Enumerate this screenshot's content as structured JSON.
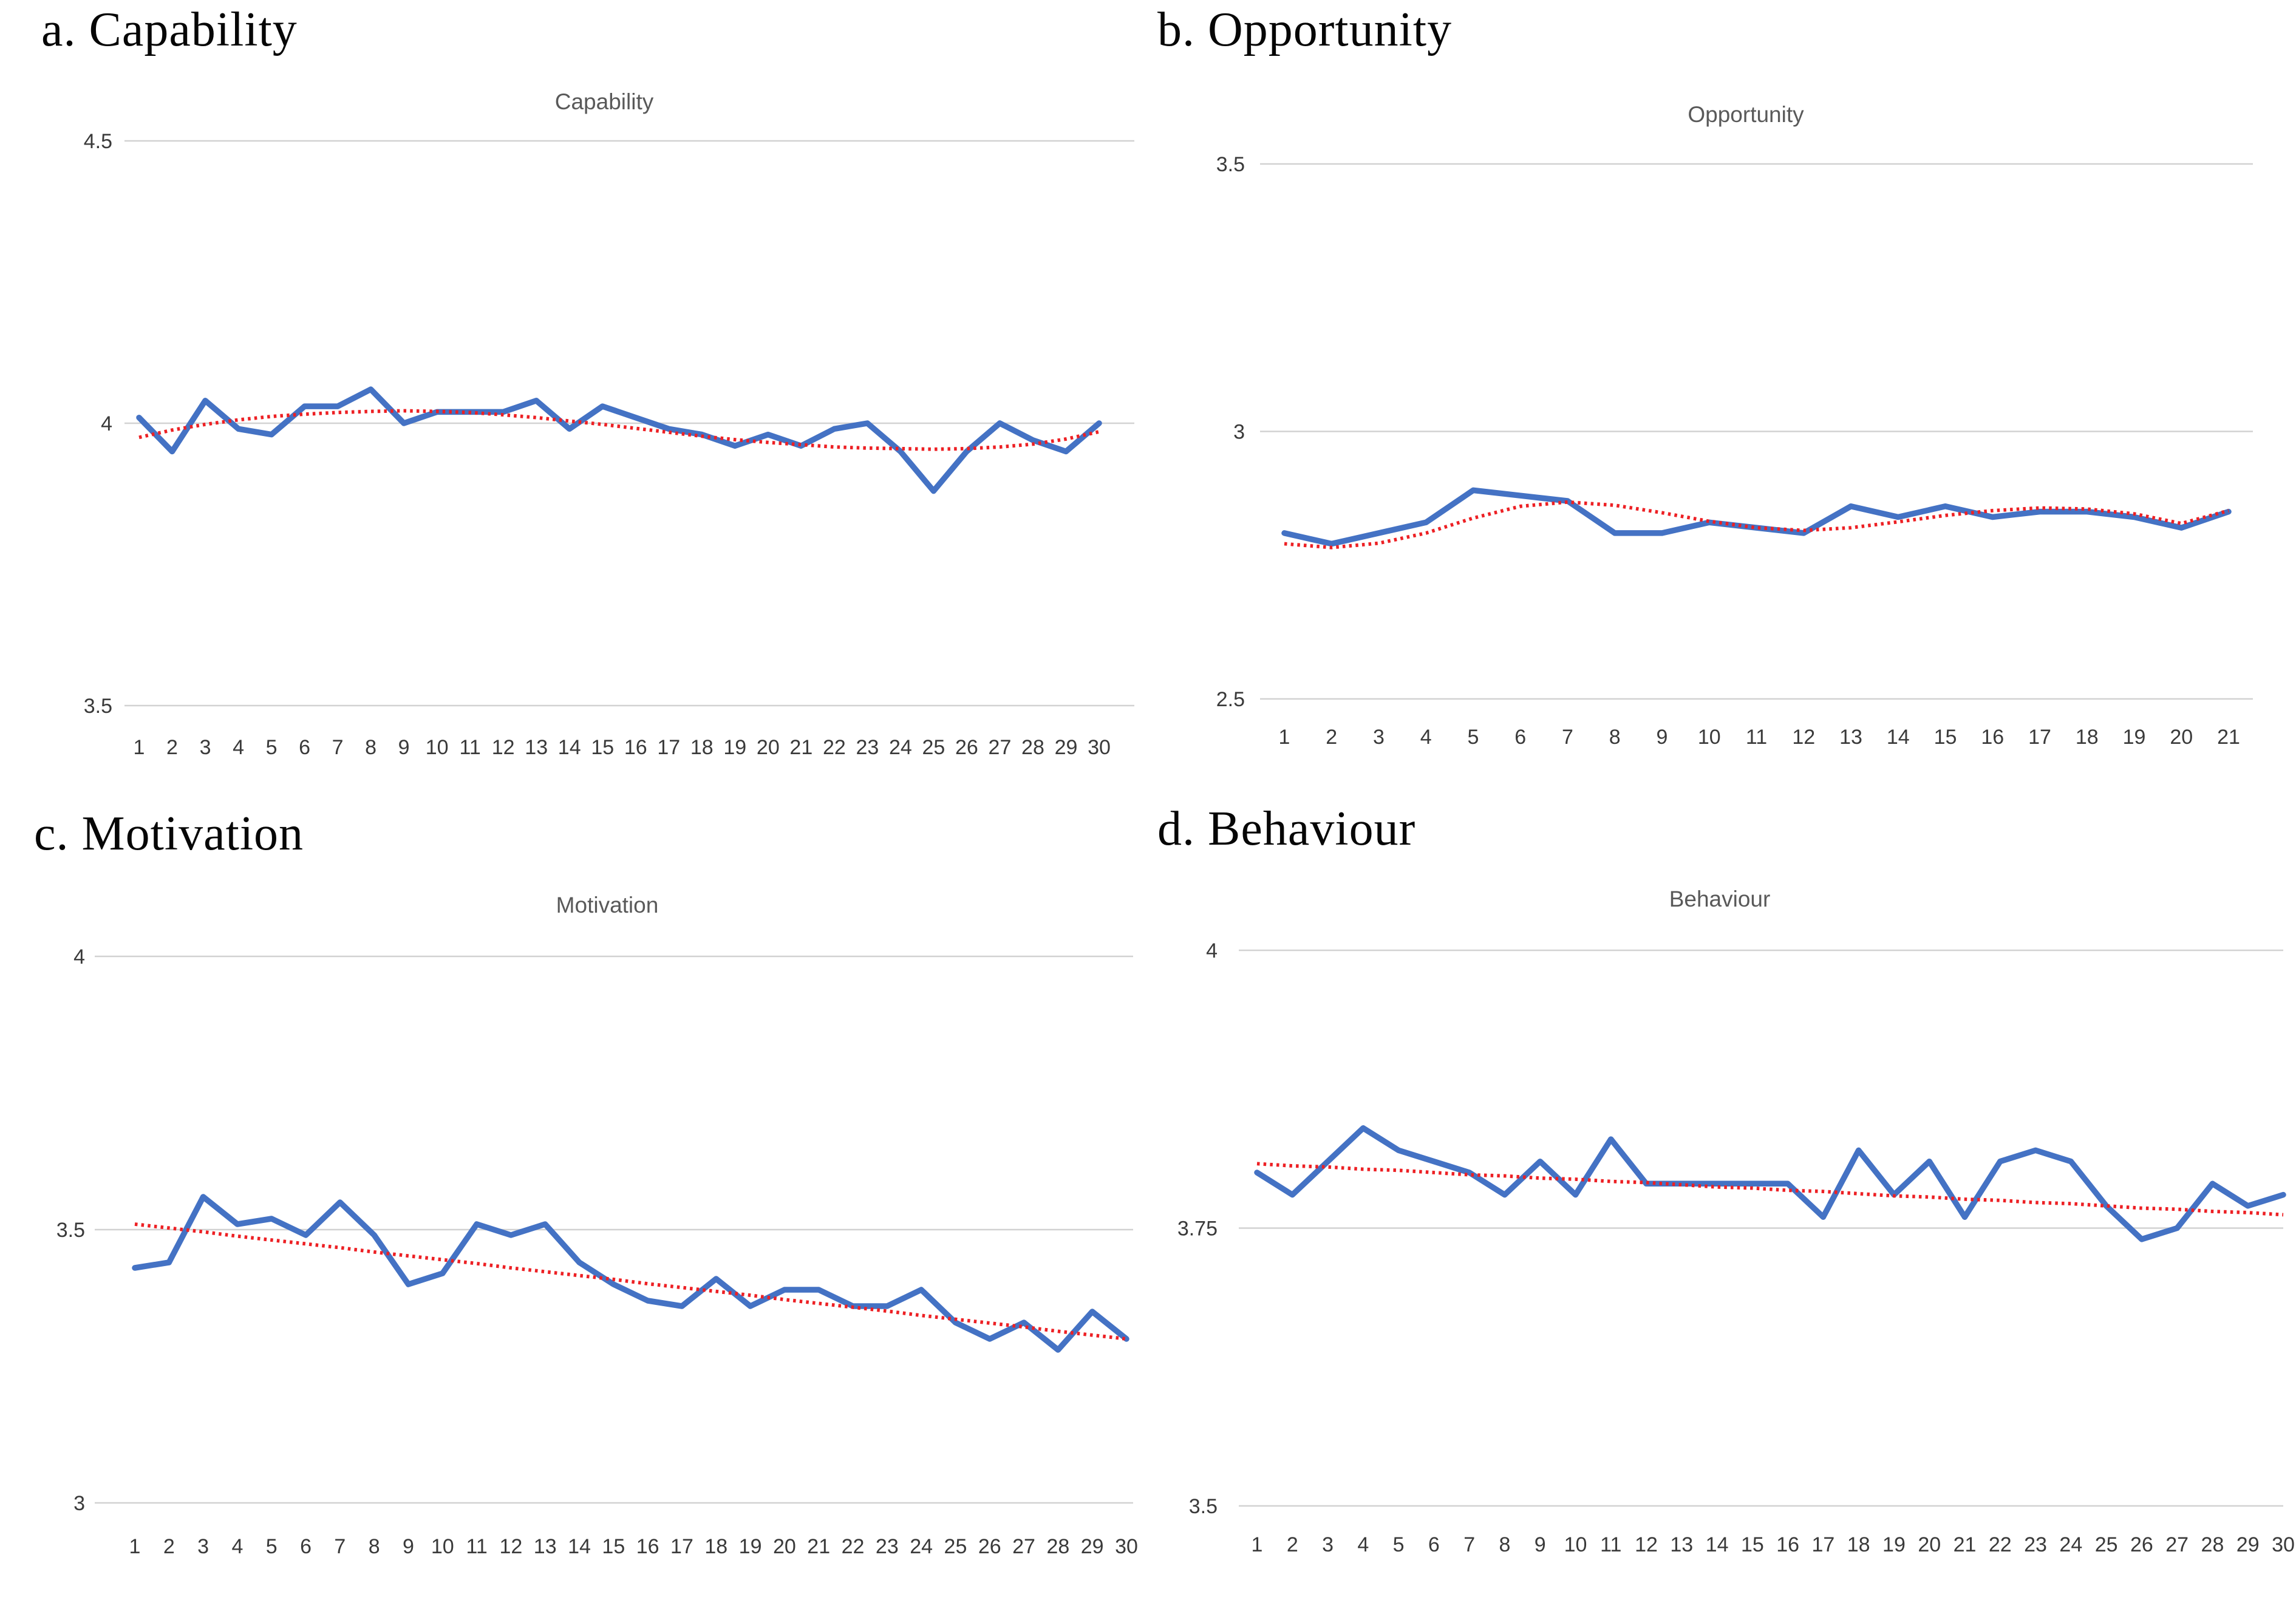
{
  "colors": {
    "series_blue": "#4472C4",
    "trend_red": "#ED2024",
    "gridline_gray": "#D2D2D2",
    "axis_line_gray": "#C9C9C9",
    "tick_text": "#3A3A3A",
    "title_text": "#595959",
    "heading_text": "#060606",
    "background": "#FFFFFF"
  },
  "chart_data": [
    {
      "type": "line",
      "panel_label": "a. Capability",
      "title": "Capability",
      "xlabel": "",
      "ylabel": "",
      "ylim": [
        3.5,
        4.5
      ],
      "grid": true,
      "legend": "none",
      "yticks": [
        {
          "label": "4.5",
          "value": 4.5
        },
        {
          "label": "4",
          "value": 4.0
        },
        {
          "label": "3.5",
          "value": 3.5
        }
      ],
      "x_labels": [
        "1",
        "2",
        "3",
        "4",
        "5",
        "6",
        "7",
        "8",
        "9",
        "10",
        "11",
        "12",
        "13",
        "14",
        "15",
        "16",
        "17",
        "18",
        "19",
        "20",
        "21",
        "22",
        "23",
        "24",
        "25",
        "26",
        "27",
        "28",
        "29",
        "30"
      ],
      "series": [
        {
          "name": "Capability",
          "role": "data",
          "style": "solid",
          "color": "#4472C4",
          "values": [
            4.01,
            3.95,
            4.04,
            3.99,
            3.98,
            4.03,
            4.03,
            4.06,
            4.0,
            4.02,
            4.02,
            4.02,
            4.04,
            3.99,
            4.03,
            4.01,
            3.99,
            3.98,
            3.96,
            3.98,
            3.96,
            3.99,
            4.0,
            3.95,
            3.88,
            3.95,
            4.0,
            3.97,
            3.95,
            4.0
          ]
        },
        {
          "name": "Trendline",
          "role": "trend",
          "style": "dotted",
          "color": "#ED2024",
          "values": [
            3.975,
            3.988,
            3.998,
            4.006,
            4.012,
            4.016,
            4.019,
            4.021,
            4.022,
            4.021,
            4.019,
            4.015,
            4.01,
            4.004,
            3.998,
            3.991,
            3.984,
            3.977,
            3.971,
            3.966,
            3.962,
            3.958,
            3.956,
            3.955,
            3.954,
            3.955,
            3.958,
            3.963,
            3.972,
            3.985
          ]
        }
      ]
    },
    {
      "type": "line",
      "panel_label": "b. Opportunity",
      "title": "Opportunity",
      "xlabel": "",
      "ylabel": "",
      "ylim": [
        2.5,
        3.5
      ],
      "grid": true,
      "legend": "none",
      "yticks": [
        {
          "label": "3.5",
          "value": 3.5
        },
        {
          "label": "3",
          "value": 3.0
        },
        {
          "label": "2.5",
          "value": 2.5
        }
      ],
      "x_labels": [
        "1",
        "2",
        "3",
        "4",
        "5",
        "6",
        "7",
        "8",
        "9",
        "10",
        "11",
        "12",
        "13",
        "14",
        "15",
        "16",
        "17",
        "18",
        "19",
        "20",
        "21"
      ],
      "series": [
        {
          "name": "Opportunity",
          "role": "data",
          "style": "solid",
          "color": "#4472C4",
          "values": [
            2.81,
            2.79,
            2.81,
            2.83,
            2.89,
            2.88,
            2.87,
            2.81,
            2.81,
            2.83,
            2.82,
            2.81,
            2.86,
            2.84,
            2.86,
            2.84,
            2.85,
            2.85,
            2.84,
            2.82,
            2.85
          ]
        },
        {
          "name": "Trendline",
          "role": "trend",
          "style": "dotted",
          "color": "#ED2024",
          "values": [
            2.79,
            2.783,
            2.791,
            2.81,
            2.838,
            2.86,
            2.868,
            2.862,
            2.848,
            2.832,
            2.82,
            2.815,
            2.82,
            2.831,
            2.843,
            2.852,
            2.857,
            2.855,
            2.846,
            2.828,
            2.852
          ]
        }
      ]
    },
    {
      "type": "line",
      "panel_label": "c. Motivation",
      "title": "Motivation",
      "xlabel": "",
      "ylabel": "",
      "ylim": [
        3.0,
        4.0
      ],
      "grid": true,
      "legend": "none",
      "yticks": [
        {
          "label": "4",
          "value": 4.0
        },
        {
          "label": "3.5",
          "value": 3.5
        },
        {
          "label": "3",
          "value": 3.0
        }
      ],
      "x_labels": [
        "1",
        "2",
        "3",
        "4",
        "5",
        "6",
        "7",
        "8",
        "9",
        "10",
        "11",
        "12",
        "13",
        "14",
        "15",
        "16",
        "17",
        "18",
        "19",
        "20",
        "21",
        "22",
        "23",
        "24",
        "25",
        "26",
        "27",
        "28",
        "29",
        "30"
      ],
      "series": [
        {
          "name": "Motivation",
          "role": "data",
          "style": "solid",
          "color": "#4472C4",
          "values": [
            3.43,
            3.44,
            3.56,
            3.51,
            3.52,
            3.49,
            3.55,
            3.49,
            3.4,
            3.42,
            3.51,
            3.49,
            3.51,
            3.44,
            3.4,
            3.37,
            3.36,
            3.41,
            3.36,
            3.39,
            3.39,
            3.36,
            3.36,
            3.39,
            3.33,
            3.3,
            3.33,
            3.28,
            3.35,
            3.3
          ]
        },
        {
          "name": "Trendline",
          "role": "trend",
          "style": "dotted",
          "color": "#ED2024",
          "values": [
            3.51,
            3.503,
            3.496,
            3.488,
            3.481,
            3.474,
            3.467,
            3.459,
            3.452,
            3.445,
            3.438,
            3.43,
            3.423,
            3.416,
            3.409,
            3.401,
            3.394,
            3.387,
            3.38,
            3.372,
            3.365,
            3.358,
            3.351,
            3.343,
            3.336,
            3.329,
            3.322,
            3.314,
            3.307,
            3.3
          ]
        }
      ]
    },
    {
      "type": "line",
      "panel_label": "d. Behaviour",
      "title": "Behaviour",
      "xlabel": "",
      "ylabel": "",
      "ylim": [
        3.5,
        4.0
      ],
      "grid": true,
      "legend": "none",
      "yticks": [
        {
          "label": "4",
          "value": 4.0
        },
        {
          "label": "3.75",
          "value": 3.75
        },
        {
          "label": "3.5",
          "value": 3.5
        }
      ],
      "x_labels": [
        "1",
        "2",
        "3",
        "4",
        "5",
        "6",
        "7",
        "8",
        "9",
        "10",
        "11",
        "12",
        "13",
        "14",
        "15",
        "16",
        "17",
        "18",
        "19",
        "20",
        "21",
        "22",
        "23",
        "24",
        "25",
        "26",
        "27",
        "28",
        "29",
        "30"
      ],
      "series": [
        {
          "name": "Behaviour",
          "role": "data",
          "style": "solid",
          "color": "#4472C4",
          "values": [
            3.8,
            3.78,
            3.81,
            3.84,
            3.82,
            3.81,
            3.8,
            3.78,
            3.81,
            3.78,
            3.83,
            3.79,
            3.79,
            3.79,
            3.79,
            3.79,
            3.76,
            3.82,
            3.78,
            3.81,
            3.76,
            3.81,
            3.82,
            3.81,
            3.77,
            3.74,
            3.75,
            3.79,
            3.77,
            3.78
          ]
        },
        {
          "name": "Trendline",
          "role": "trend",
          "style": "dotted",
          "color": "#ED2024",
          "values": [
            3.808,
            3.806,
            3.805,
            3.803,
            3.802,
            3.8,
            3.798,
            3.797,
            3.795,
            3.794,
            3.792,
            3.791,
            3.789,
            3.787,
            3.786,
            3.784,
            3.783,
            3.781,
            3.779,
            3.778,
            3.776,
            3.775,
            3.773,
            3.772,
            3.77,
            3.768,
            3.767,
            3.765,
            3.764,
            3.762
          ]
        }
      ]
    }
  ]
}
